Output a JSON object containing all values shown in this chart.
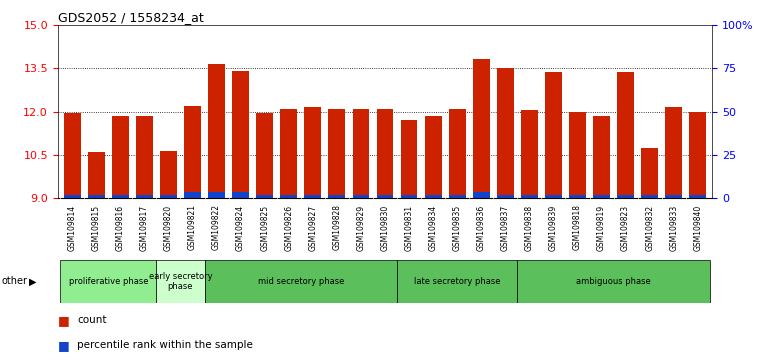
{
  "title": "GDS2052 / 1558234_at",
  "samples": [
    "GSM109814",
    "GSM109815",
    "GSM109816",
    "GSM109817",
    "GSM109820",
    "GSM109821",
    "GSM109822",
    "GSM109824",
    "GSM109825",
    "GSM109826",
    "GSM109827",
    "GSM109828",
    "GSM109829",
    "GSM109830",
    "GSM109831",
    "GSM109834",
    "GSM109835",
    "GSM109836",
    "GSM109837",
    "GSM109838",
    "GSM109839",
    "GSM109818",
    "GSM109819",
    "GSM109823",
    "GSM109832",
    "GSM109833",
    "GSM109840"
  ],
  "count_values": [
    11.95,
    10.6,
    11.85,
    11.85,
    10.65,
    12.2,
    13.65,
    13.4,
    11.95,
    12.1,
    12.15,
    12.1,
    12.1,
    12.1,
    11.7,
    11.85,
    12.1,
    13.8,
    13.5,
    12.05,
    13.35,
    12.0,
    11.85,
    13.35,
    10.75,
    12.15,
    12.0
  ],
  "percentile_values": [
    0.12,
    0.12,
    0.12,
    0.12,
    0.12,
    0.2,
    0.2,
    0.2,
    0.12,
    0.12,
    0.12,
    0.12,
    0.12,
    0.12,
    0.12,
    0.12,
    0.12,
    0.2,
    0.12,
    0.12,
    0.12,
    0.12,
    0.12,
    0.12,
    0.12,
    0.12,
    0.12
  ],
  "phases": [
    {
      "label": "proliferative phase",
      "start": 0,
      "end": 4,
      "color": "#90EE90"
    },
    {
      "label": "early secretory\nphase",
      "start": 4,
      "end": 6,
      "color": "#ccffcc"
    },
    {
      "label": "mid secretory phase",
      "start": 6,
      "end": 14,
      "color": "#5bbf5b"
    },
    {
      "label": "late secretory phase",
      "start": 14,
      "end": 19,
      "color": "#5bbf5b"
    },
    {
      "label": "ambiguous phase",
      "start": 19,
      "end": 27,
      "color": "#5bbf5b"
    }
  ],
  "bar_bottom": 9.0,
  "ylim_left": [
    9.0,
    15.0
  ],
  "ylim_right": [
    0,
    100
  ],
  "yticks_left": [
    9,
    10.5,
    12,
    13.5,
    15
  ],
  "yticks_right": [
    0,
    25,
    50,
    75,
    100
  ],
  "grid_lines": [
    10.5,
    12,
    13.5
  ],
  "bar_color_red": "#cc2200",
  "bar_color_blue": "#1144cc",
  "plot_bg": "#ffffff",
  "tick_bg": "#d0d0d0"
}
